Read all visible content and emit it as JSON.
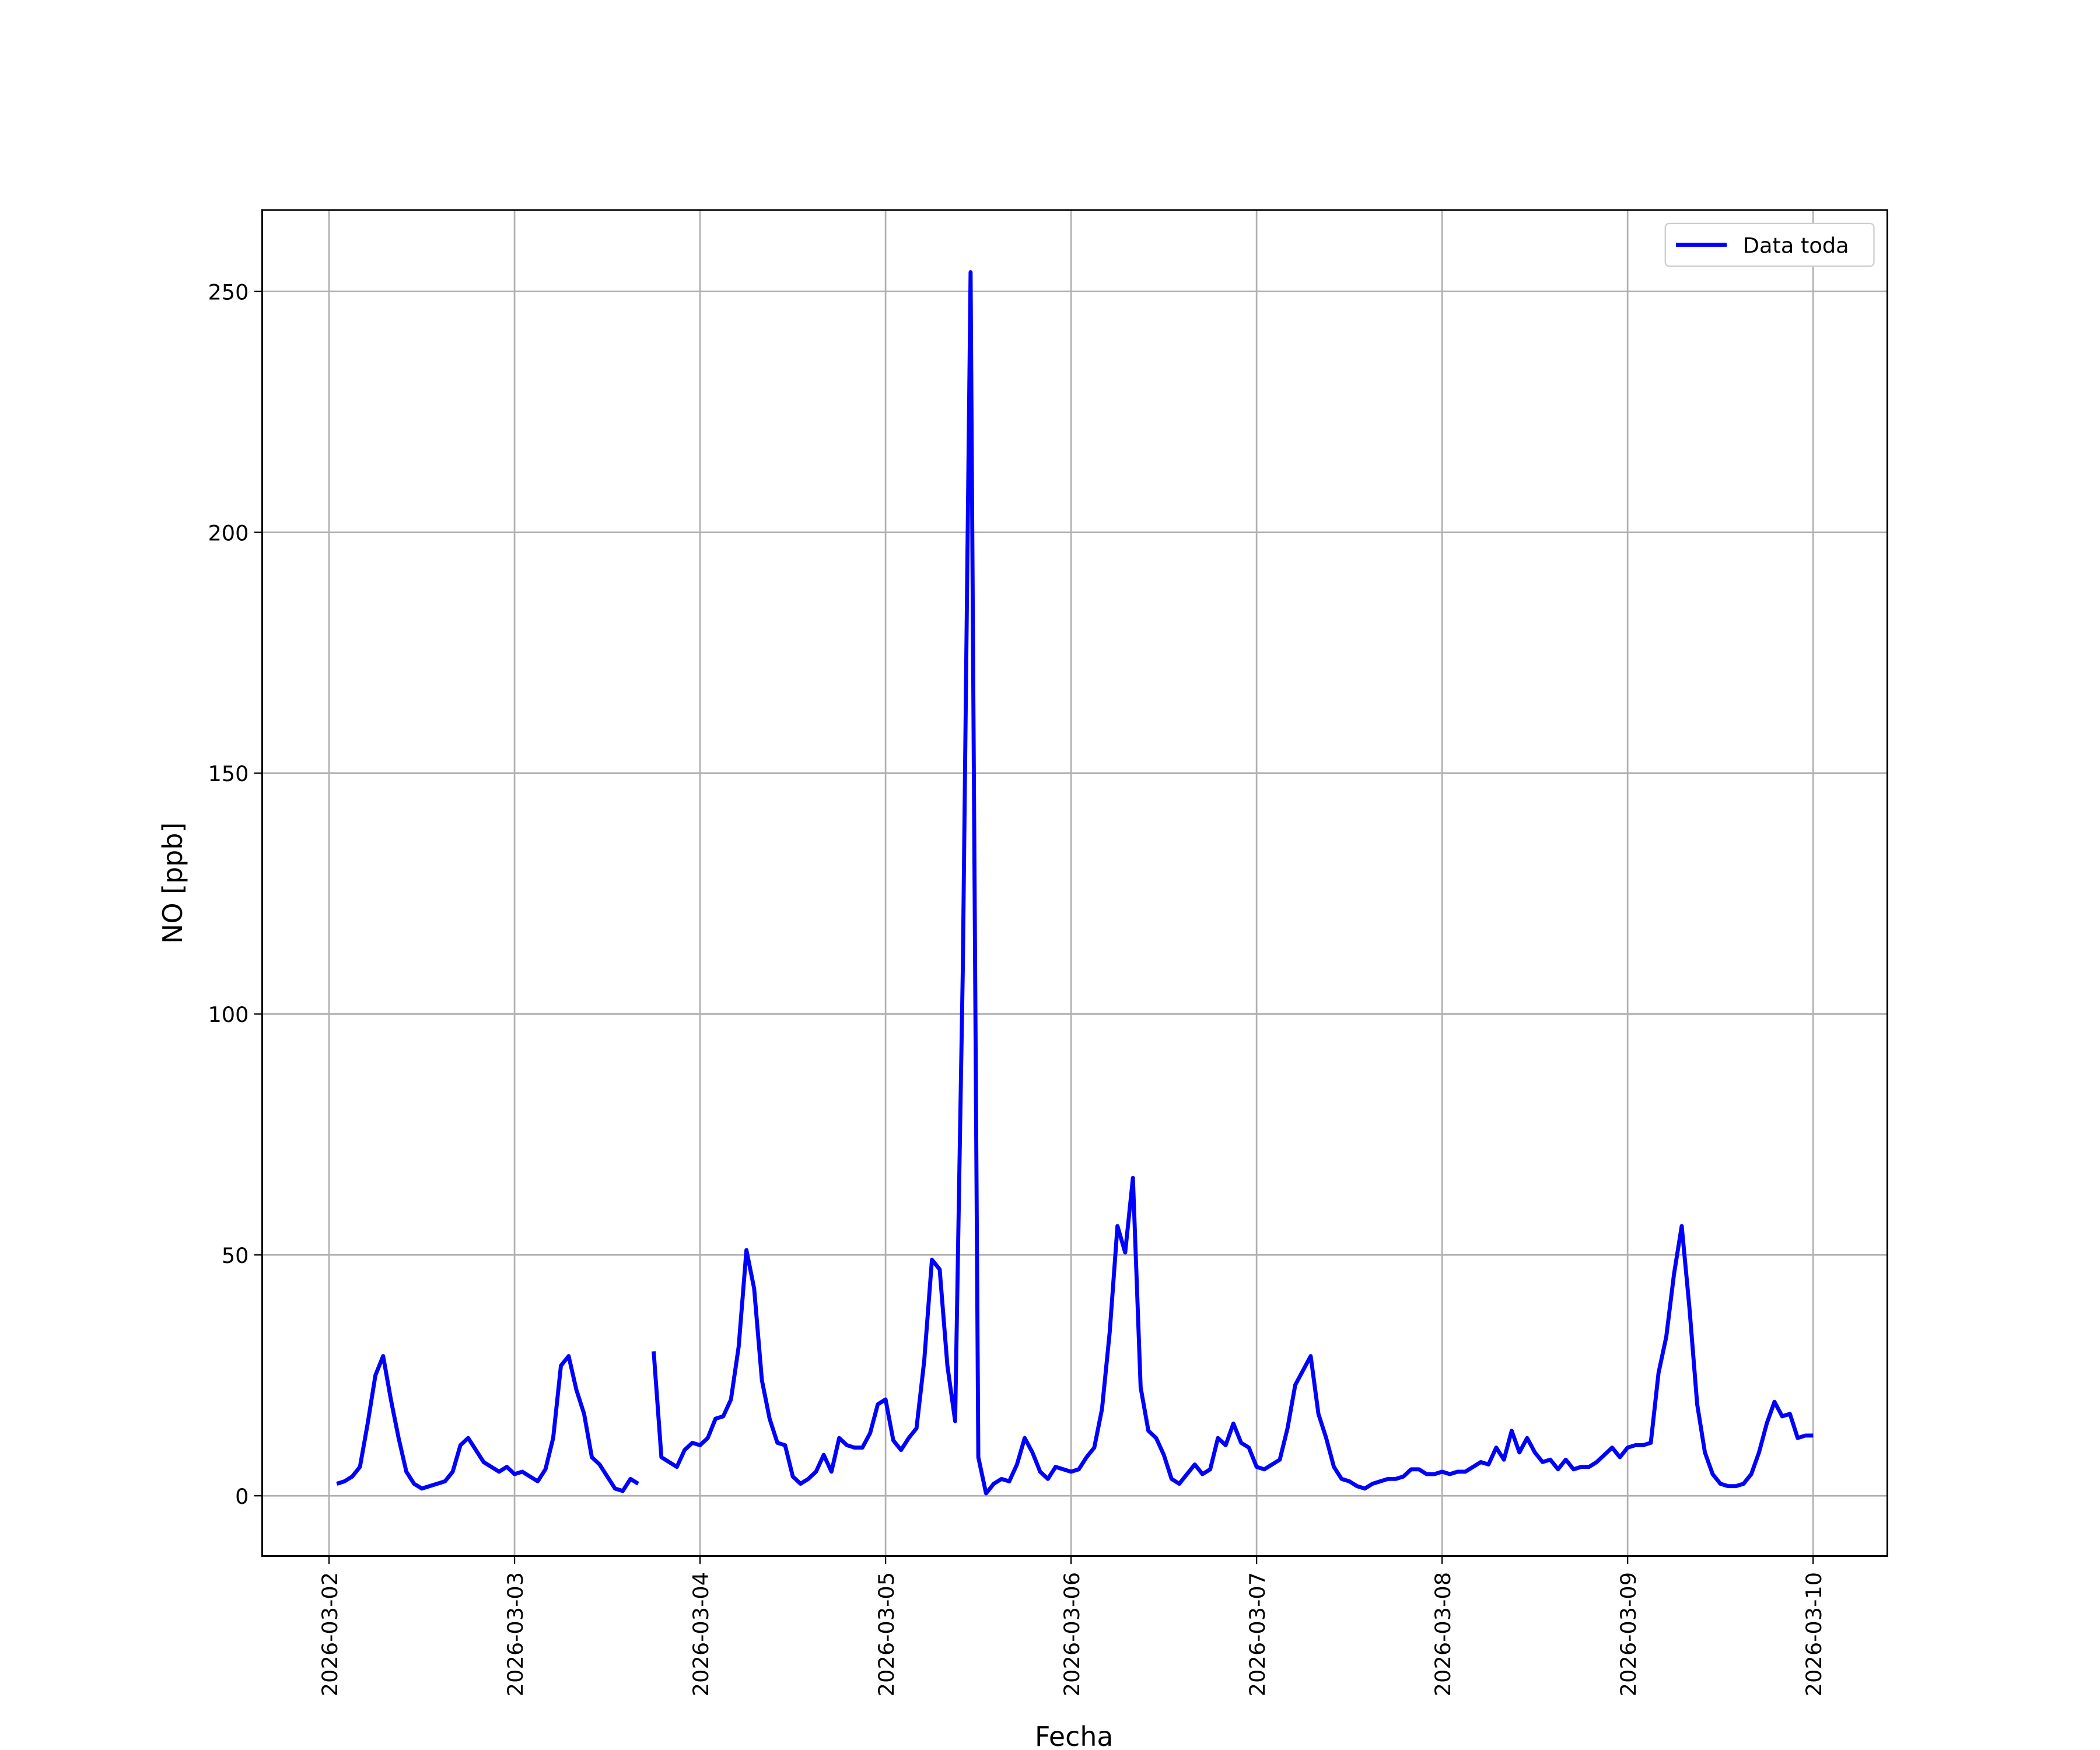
{
  "chart_data": {
    "type": "line",
    "xlabel": "Fecha",
    "ylabel": "NO [ppb]",
    "x": [
      1,
      2,
      3,
      4,
      5,
      6,
      7,
      8,
      9,
      10,
      11,
      12,
      13,
      14,
      15,
      16,
      17,
      18,
      19,
      20,
      21,
      22,
      23,
      24,
      25,
      26,
      27,
      28,
      29,
      30,
      31,
      32,
      33,
      34,
      35,
      36,
      37,
      38,
      39,
      40,
      41,
      42,
      43,
      44,
      45,
      46,
      47,
      48,
      49,
      50,
      51,
      52,
      53,
      54,
      55,
      56,
      57,
      58,
      59,
      60,
      61,
      62,
      63,
      64,
      65,
      66,
      67,
      68,
      69,
      70,
      71,
      72,
      73,
      74,
      75,
      76,
      77,
      78,
      79,
      80,
      81,
      82,
      83,
      84,
      85,
      86,
      87,
      88,
      89,
      90,
      91,
      92,
      93,
      94,
      95,
      96,
      97,
      98,
      99,
      100,
      101,
      102,
      103,
      104,
      105,
      106,
      107,
      108,
      109,
      110,
      111,
      112,
      113,
      114,
      115,
      116,
      117,
      118,
      119,
      120,
      121,
      122,
      123,
      124,
      125,
      126,
      127,
      128,
      129,
      130,
      131,
      132,
      133,
      134,
      135,
      136,
      137,
      138,
      139,
      140,
      141,
      142,
      143,
      144,
      145,
      146,
      147,
      148,
      149,
      150,
      151,
      152,
      153,
      154,
      155,
      156,
      157,
      158,
      159,
      160,
      161,
      162,
      163,
      164,
      165,
      166,
      167,
      168,
      169,
      170,
      171,
      172,
      173,
      174,
      175,
      176,
      177,
      178,
      179,
      180,
      181,
      182,
      183,
      184,
      185,
      186,
      187,
      188,
      189,
      190,
      191,
      192
    ],
    "series": [
      {
        "name": "Data toda",
        "color": "#0000ff",
        "values": [
          2.5,
          3,
          4,
          6,
          15,
          25,
          29,
          20,
          12,
          5,
          2.5,
          1.5,
          2,
          2.5,
          3,
          5,
          10.5,
          12,
          9.5,
          7,
          6,
          5,
          6,
          4.5,
          5,
          4,
          3,
          5.5,
          12,
          27,
          29,
          22,
          17,
          8,
          6.5,
          4,
          1.5,
          1,
          3.5,
          2.5,
          null,
          30,
          8,
          7,
          6,
          9.5,
          11,
          10.5,
          12,
          16,
          16.5,
          20,
          31,
          51,
          43,
          24,
          16,
          11,
          10.5,
          4,
          2.5,
          3.5,
          5,
          8.5,
          5,
          12,
          10.5,
          10,
          10,
          13,
          19,
          20,
          11.5,
          9.5,
          12,
          14,
          28,
          49,
          47,
          27,
          15.5,
          110,
          254,
          8,
          0.5,
          2.5,
          3.5,
          3,
          6.5,
          12,
          9,
          5,
          3.5,
          6,
          5.5,
          5,
          5.5,
          8,
          10,
          18,
          34,
          56,
          50.5,
          66,
          22.5,
          13.5,
          12,
          8.5,
          3.5,
          2.5,
          4.5,
          6.5,
          4.5,
          5.5,
          12,
          10.5,
          15,
          11,
          10,
          6,
          5.5,
          6.5,
          7.5,
          14,
          23,
          26,
          29,
          17,
          12,
          6,
          3.5,
          3,
          2,
          1.5,
          2.5,
          3,
          3.5,
          3.5,
          4,
          5.5,
          5.5,
          4.5,
          4.5,
          5,
          4.5,
          5,
          5,
          6,
          7,
          6.5,
          10,
          7.5,
          13.5,
          9,
          12,
          9,
          7,
          7.5,
          5.5,
          7.5,
          5.5,
          6,
          6,
          7,
          8.5,
          10,
          8,
          10,
          10.5,
          10.5,
          11,
          25.5,
          33,
          46,
          56,
          39,
          19,
          9,
          4.5,
          2.5,
          2,
          2,
          2.5,
          4.5,
          9,
          15,
          19.5,
          16.5,
          17,
          12,
          12.5,
          12.5
        ]
      }
    ],
    "xlim": [
      -8.65,
      201.6
    ],
    "xticks": [
      {
        "value": 0,
        "label": "2026-03-02"
      },
      {
        "value": 24,
        "label": "2026-03-03"
      },
      {
        "value": 48,
        "label": "2026-03-04"
      },
      {
        "value": 72,
        "label": "2026-03-05"
      },
      {
        "value": 96,
        "label": "2026-03-06"
      },
      {
        "value": 120,
        "label": "2026-03-07"
      },
      {
        "value": 144,
        "label": "2026-03-08"
      },
      {
        "value": 168,
        "label": "2026-03-09"
      },
      {
        "value": 192,
        "label": "2026-03-10"
      }
    ],
    "ylim": [
      -12.5,
      266.9
    ],
    "yticks": [
      0,
      50,
      100,
      150,
      200,
      250
    ],
    "grid": true,
    "legend": "upper right"
  }
}
